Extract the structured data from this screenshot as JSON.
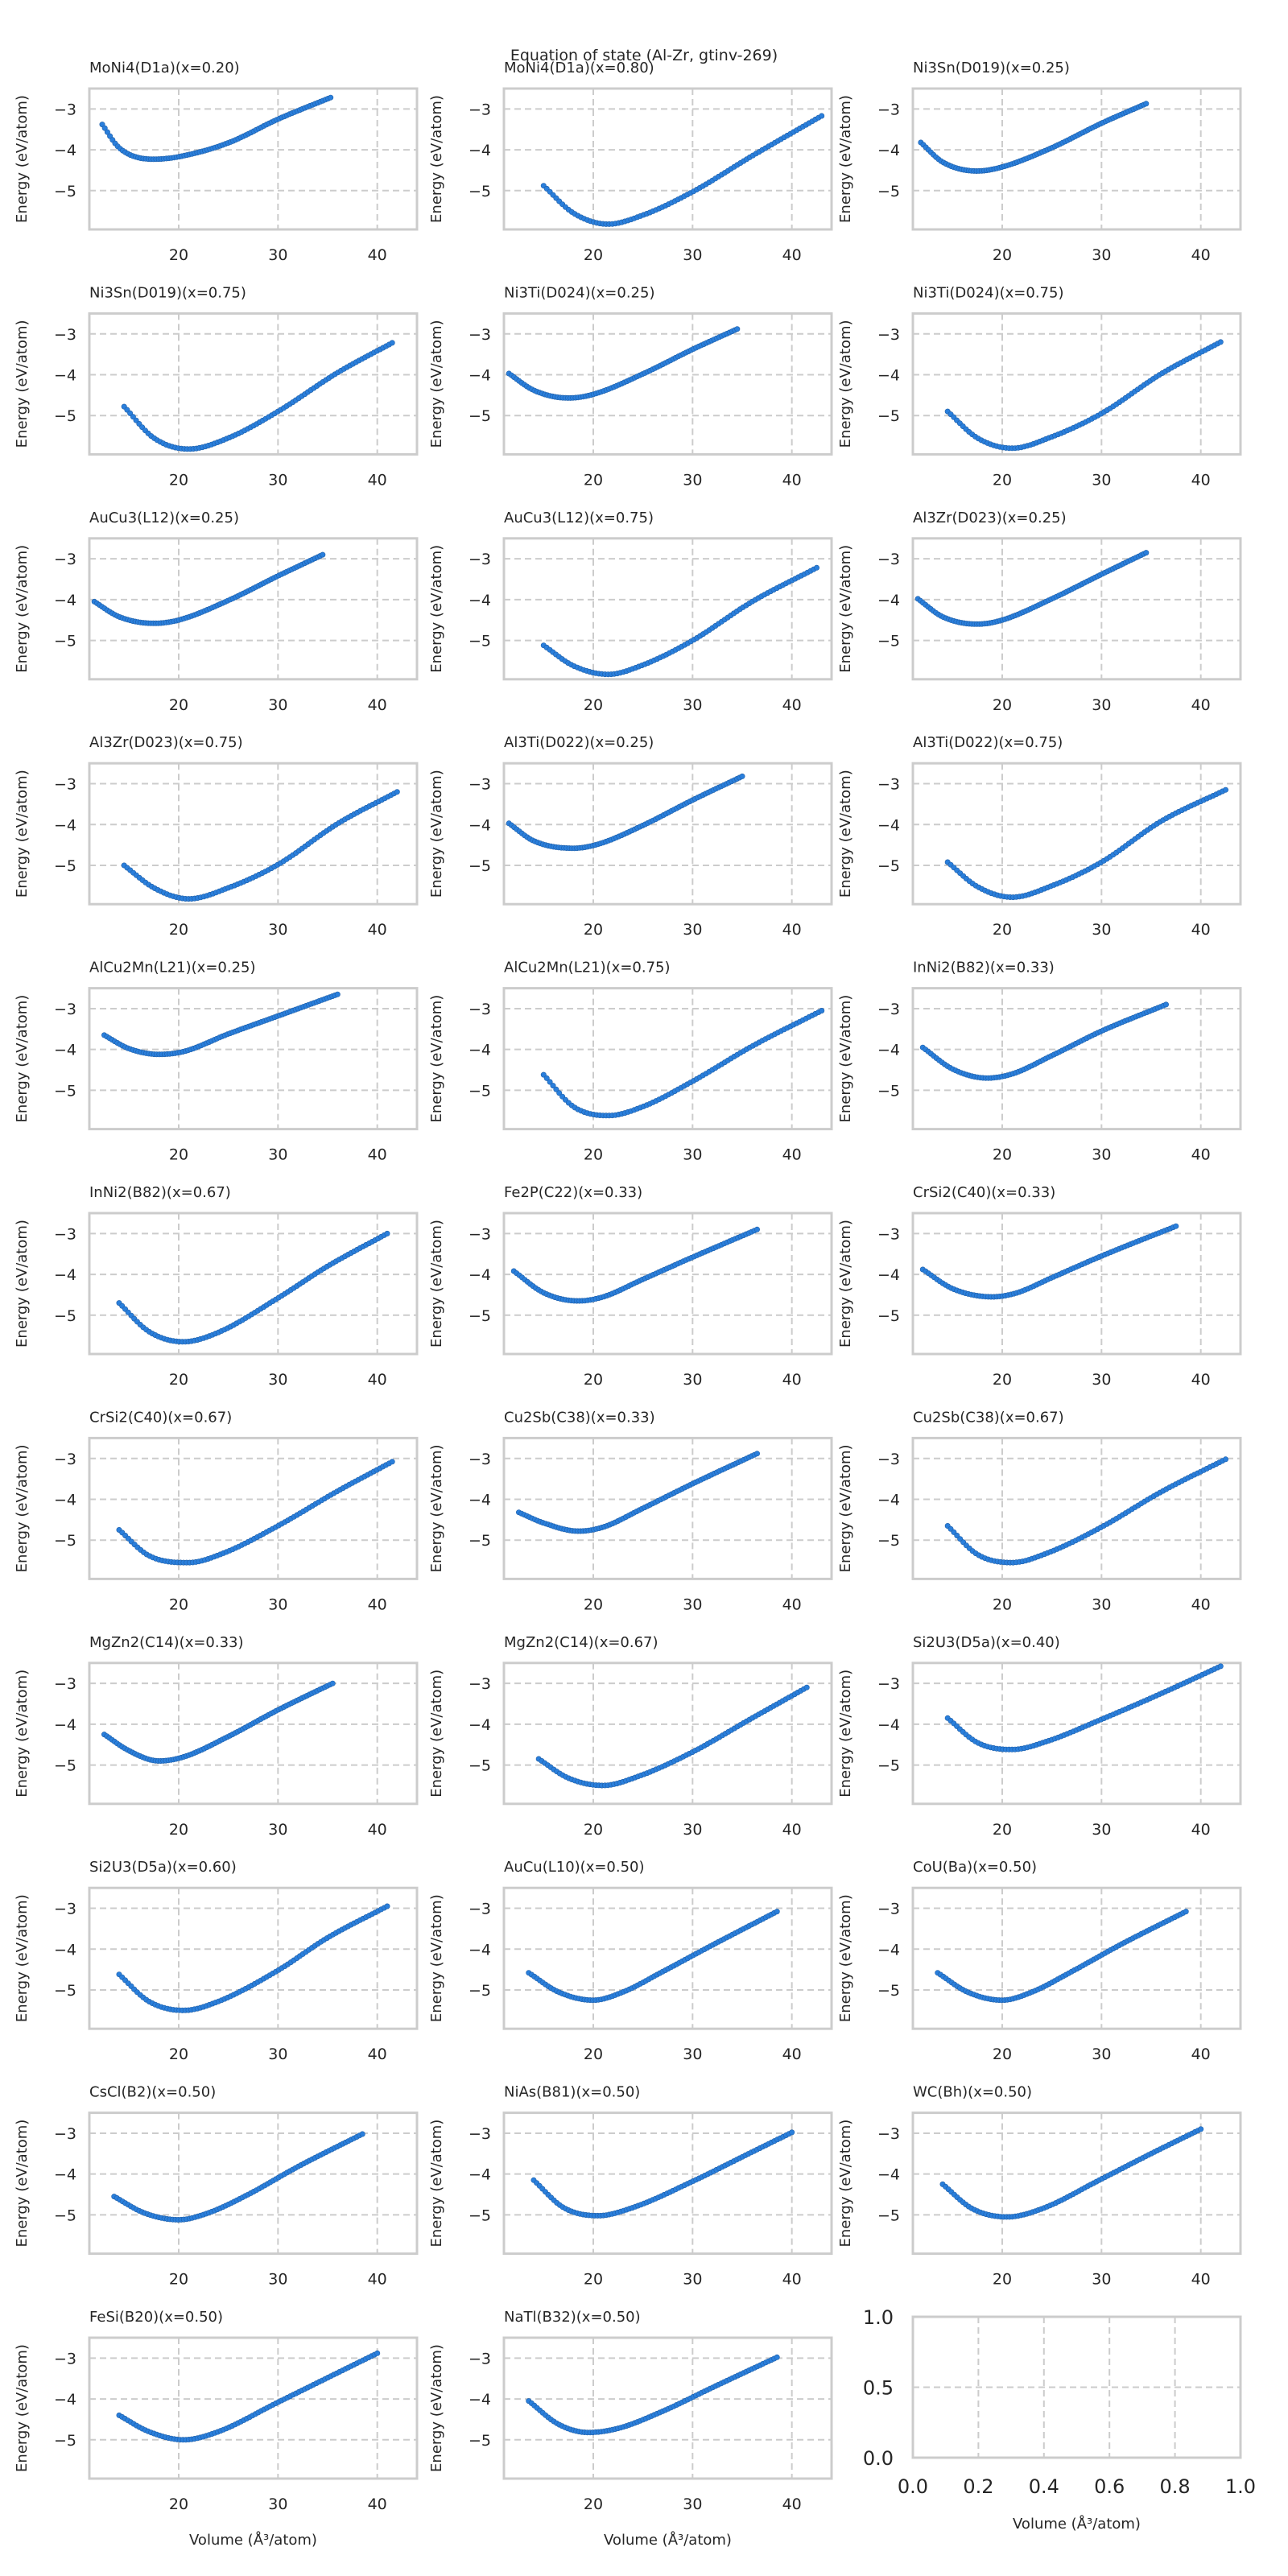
{
  "figure": {
    "suptitle": "Equation of state (Al-Zr, gtinv-269)",
    "marker_color": "#2a7fdc",
    "marker_edge_color": "#1f5fa8",
    "grid_color": "#cccccc",
    "frame_color": "#cccccc"
  },
  "chart_data": {
    "type": "scatter",
    "title": "Equation of state (Al-Zr, gtinv-269)",
    "xlabel": "Volume (Å³/atom)",
    "ylabel": "Energy (eV/atom)",
    "xlim": [
      11,
      44
    ],
    "ylim": [
      -5.95,
      -2.5
    ],
    "xticks": [
      20,
      30,
      40
    ],
    "yticks": [
      -3,
      -4,
      -5
    ],
    "xtick_labels": [
      "20",
      "30",
      "40"
    ],
    "ytick_labels": [
      "−3",
      "−4",
      "−5"
    ],
    "grid": true,
    "layout": "11 rows x 3 columns",
    "panels": [
      {
        "title": "MoNi4(D1a)(x=0.20)",
        "points": [
          [
            12.3,
            -3.38
          ],
          [
            14.0,
            -3.95
          ],
          [
            17.5,
            -4.23
          ],
          [
            20.0,
            -4.17
          ],
          [
            25.0,
            -3.83
          ],
          [
            30.0,
            -3.25
          ],
          [
            35.3,
            -2.72
          ]
        ]
      },
      {
        "title": "MoNi4(D1a)(x=0.80)",
        "points": [
          [
            15.0,
            -4.88
          ],
          [
            18.0,
            -5.55
          ],
          [
            21.5,
            -5.82
          ],
          [
            25.0,
            -5.6
          ],
          [
            30.0,
            -5.03
          ],
          [
            36.0,
            -4.15
          ],
          [
            43.0,
            -3.17
          ]
        ]
      },
      {
        "title": "Ni3Sn(D019)(x=0.25)",
        "points": [
          [
            11.8,
            -3.82
          ],
          [
            14.0,
            -4.3
          ],
          [
            17.5,
            -4.52
          ],
          [
            20.0,
            -4.42
          ],
          [
            25.0,
            -3.95
          ],
          [
            30.0,
            -3.35
          ],
          [
            34.5,
            -2.87
          ]
        ]
      },
      {
        "title": "Ni3Sn(D019)(x=0.75)",
        "points": [
          [
            14.5,
            -4.78
          ],
          [
            17.5,
            -5.55
          ],
          [
            21.0,
            -5.82
          ],
          [
            25.0,
            -5.55
          ],
          [
            30.0,
            -4.9
          ],
          [
            36.0,
            -3.95
          ],
          [
            41.5,
            -3.22
          ]
        ]
      },
      {
        "title": "Ni3Ti(D024)(x=0.25)",
        "points": [
          [
            11.5,
            -3.97
          ],
          [
            14.0,
            -4.38
          ],
          [
            17.5,
            -4.57
          ],
          [
            20.0,
            -4.48
          ],
          [
            25.0,
            -3.98
          ],
          [
            30.0,
            -3.38
          ],
          [
            34.5,
            -2.88
          ]
        ]
      },
      {
        "title": "Ni3Ti(D024)(x=0.75)",
        "points": [
          [
            14.5,
            -4.9
          ],
          [
            17.5,
            -5.55
          ],
          [
            21.0,
            -5.8
          ],
          [
            25.0,
            -5.52
          ],
          [
            30.0,
            -4.95
          ],
          [
            36.0,
            -3.98
          ],
          [
            42.0,
            -3.2
          ]
        ]
      },
      {
        "title": "AuCu3(L12)(x=0.25)",
        "points": [
          [
            11.5,
            -4.05
          ],
          [
            14.0,
            -4.42
          ],
          [
            17.5,
            -4.58
          ],
          [
            20.0,
            -4.5
          ],
          [
            25.0,
            -4.02
          ],
          [
            30.0,
            -3.42
          ],
          [
            34.5,
            -2.9
          ]
        ]
      },
      {
        "title": "AuCu3(L12)(x=0.75)",
        "points": [
          [
            15.0,
            -5.12
          ],
          [
            18.0,
            -5.62
          ],
          [
            21.5,
            -5.83
          ],
          [
            25.0,
            -5.6
          ],
          [
            30.0,
            -5.0
          ],
          [
            36.0,
            -4.05
          ],
          [
            42.5,
            -3.22
          ]
        ]
      },
      {
        "title": "Al3Zr(D023)(x=0.25)",
        "points": [
          [
            11.5,
            -3.98
          ],
          [
            14.0,
            -4.42
          ],
          [
            17.5,
            -4.6
          ],
          [
            20.0,
            -4.5
          ],
          [
            25.0,
            -3.98
          ],
          [
            30.0,
            -3.38
          ],
          [
            34.5,
            -2.85
          ]
        ]
      },
      {
        "title": "Al3Zr(D023)(x=0.75)",
        "points": [
          [
            14.5,
            -5.0
          ],
          [
            17.5,
            -5.55
          ],
          [
            21.0,
            -5.82
          ],
          [
            25.0,
            -5.55
          ],
          [
            30.0,
            -4.98
          ],
          [
            36.0,
            -3.98
          ],
          [
            42.0,
            -3.2
          ]
        ]
      },
      {
        "title": "Al3Ti(D022)(x=0.25)",
        "points": [
          [
            11.5,
            -3.97
          ],
          [
            14.0,
            -4.4
          ],
          [
            18.0,
            -4.58
          ],
          [
            20.5,
            -4.48
          ],
          [
            25.0,
            -4.02
          ],
          [
            30.0,
            -3.4
          ],
          [
            35.0,
            -2.82
          ]
        ]
      },
      {
        "title": "Al3Ti(D022)(x=0.75)",
        "points": [
          [
            14.5,
            -4.92
          ],
          [
            17.5,
            -5.52
          ],
          [
            21.0,
            -5.78
          ],
          [
            25.0,
            -5.5
          ],
          [
            30.0,
            -4.92
          ],
          [
            36.0,
            -3.92
          ],
          [
            42.5,
            -3.15
          ]
        ]
      },
      {
        "title": "AlCu2Mn(L21)(x=0.25)",
        "points": [
          [
            12.5,
            -3.65
          ],
          [
            15.0,
            -3.98
          ],
          [
            18.0,
            -4.12
          ],
          [
            20.5,
            -4.05
          ],
          [
            25.0,
            -3.62
          ],
          [
            30.0,
            -3.18
          ],
          [
            36.0,
            -2.65
          ]
        ]
      },
      {
        "title": "AlCu2Mn(L21)(x=0.75)",
        "points": [
          [
            15.0,
            -4.62
          ],
          [
            18.0,
            -5.4
          ],
          [
            21.5,
            -5.62
          ],
          [
            25.0,
            -5.4
          ],
          [
            30.0,
            -4.78
          ],
          [
            36.0,
            -3.92
          ],
          [
            43.0,
            -3.05
          ]
        ]
      },
      {
        "title": "InNi2(B82)(x=0.33)",
        "points": [
          [
            12.0,
            -3.95
          ],
          [
            15.0,
            -4.48
          ],
          [
            18.5,
            -4.7
          ],
          [
            21.0,
            -4.6
          ],
          [
            25.0,
            -4.15
          ],
          [
            30.0,
            -3.55
          ],
          [
            36.5,
            -2.9
          ]
        ]
      },
      {
        "title": "InNi2(B82)(x=0.67)",
        "points": [
          [
            14.0,
            -4.7
          ],
          [
            17.0,
            -5.4
          ],
          [
            20.5,
            -5.65
          ],
          [
            24.0,
            -5.42
          ],
          [
            30.0,
            -4.58
          ],
          [
            35.0,
            -3.8
          ],
          [
            41.0,
            -3.0
          ]
        ]
      },
      {
        "title": "Fe2P(C22)(x=0.33)",
        "points": [
          [
            12.0,
            -3.92
          ],
          [
            15.0,
            -4.45
          ],
          [
            18.5,
            -4.65
          ],
          [
            21.0,
            -4.55
          ],
          [
            25.0,
            -4.12
          ],
          [
            30.0,
            -3.58
          ],
          [
            36.5,
            -2.9
          ]
        ]
      },
      {
        "title": "CrSi2(C40)(x=0.33)",
        "points": [
          [
            12.0,
            -3.88
          ],
          [
            15.0,
            -4.35
          ],
          [
            19.0,
            -4.55
          ],
          [
            21.5,
            -4.45
          ],
          [
            25.0,
            -4.08
          ],
          [
            30.0,
            -3.55
          ],
          [
            37.5,
            -2.82
          ]
        ]
      },
      {
        "title": "CrSi2(C40)(x=0.67)",
        "points": [
          [
            14.0,
            -4.75
          ],
          [
            17.0,
            -5.38
          ],
          [
            21.0,
            -5.55
          ],
          [
            24.5,
            -5.32
          ],
          [
            30.0,
            -4.65
          ],
          [
            36.0,
            -3.8
          ],
          [
            41.5,
            -3.08
          ]
        ]
      },
      {
        "title": "Cu2Sb(C38)(x=0.33)",
        "points": [
          [
            12.5,
            -4.32
          ],
          [
            15.0,
            -4.58
          ],
          [
            18.5,
            -4.78
          ],
          [
            21.0,
            -4.68
          ],
          [
            25.0,
            -4.22
          ],
          [
            30.0,
            -3.62
          ],
          [
            36.5,
            -2.88
          ]
        ]
      },
      {
        "title": "Cu2Sb(C38)(x=0.67)",
        "points": [
          [
            14.5,
            -4.65
          ],
          [
            17.5,
            -5.35
          ],
          [
            21.0,
            -5.55
          ],
          [
            24.5,
            -5.32
          ],
          [
            30.0,
            -4.68
          ],
          [
            36.0,
            -3.82
          ],
          [
            42.5,
            -3.02
          ]
        ]
      },
      {
        "title": "MgZn2(C14)(x=0.33)",
        "points": [
          [
            12.5,
            -4.25
          ],
          [
            15.0,
            -4.65
          ],
          [
            18.0,
            -4.9
          ],
          [
            20.5,
            -4.8
          ],
          [
            25.0,
            -4.3
          ],
          [
            30.0,
            -3.65
          ],
          [
            35.5,
            -3.0
          ]
        ]
      },
      {
        "title": "MgZn2(C14)(x=0.67)",
        "points": [
          [
            14.5,
            -4.85
          ],
          [
            17.5,
            -5.32
          ],
          [
            21.0,
            -5.5
          ],
          [
            24.5,
            -5.28
          ],
          [
            30.0,
            -4.68
          ],
          [
            36.0,
            -3.85
          ],
          [
            41.5,
            -3.1
          ]
        ]
      },
      {
        "title": "Si2U3(D5a)(x=0.40)",
        "points": [
          [
            14.5,
            -3.85
          ],
          [
            17.5,
            -4.45
          ],
          [
            21.0,
            -4.62
          ],
          [
            24.5,
            -4.42
          ],
          [
            30.0,
            -3.88
          ],
          [
            36.0,
            -3.25
          ],
          [
            42.0,
            -2.58
          ]
        ]
      },
      {
        "title": "Si2U3(D5a)(x=0.60)",
        "points": [
          [
            14.0,
            -4.62
          ],
          [
            17.0,
            -5.28
          ],
          [
            20.5,
            -5.5
          ],
          [
            24.0,
            -5.28
          ],
          [
            30.0,
            -4.52
          ],
          [
            35.0,
            -3.72
          ],
          [
            41.0,
            -2.95
          ]
        ]
      },
      {
        "title": "AuCu(L10)(x=0.50)",
        "points": [
          [
            13.5,
            -4.58
          ],
          [
            16.5,
            -5.05
          ],
          [
            20.0,
            -5.25
          ],
          [
            23.0,
            -5.05
          ],
          [
            27.0,
            -4.55
          ],
          [
            32.0,
            -3.9
          ],
          [
            38.5,
            -3.08
          ]
        ]
      },
      {
        "title": "CoU(Ba)(x=0.50)",
        "points": [
          [
            13.5,
            -4.58
          ],
          [
            16.5,
            -5.05
          ],
          [
            20.0,
            -5.25
          ],
          [
            23.0,
            -5.05
          ],
          [
            27.0,
            -4.55
          ],
          [
            32.0,
            -3.88
          ],
          [
            38.5,
            -3.08
          ]
        ]
      },
      {
        "title": "CsCl(B2)(x=0.50)",
        "points": [
          [
            13.5,
            -4.55
          ],
          [
            16.5,
            -4.95
          ],
          [
            20.0,
            -5.12
          ],
          [
            23.0,
            -4.95
          ],
          [
            27.0,
            -4.5
          ],
          [
            32.0,
            -3.82
          ],
          [
            38.5,
            -3.02
          ]
        ]
      },
      {
        "title": "NiAs(B81)(x=0.50)",
        "points": [
          [
            14.0,
            -4.15
          ],
          [
            17.0,
            -4.82
          ],
          [
            20.5,
            -5.02
          ],
          [
            24.0,
            -4.82
          ],
          [
            30.0,
            -4.18
          ],
          [
            35.0,
            -3.58
          ],
          [
            40.0,
            -2.98
          ]
        ]
      },
      {
        "title": "WC(Bh)(x=0.50)",
        "points": [
          [
            14.0,
            -4.25
          ],
          [
            17.0,
            -4.85
          ],
          [
            20.5,
            -5.05
          ],
          [
            24.0,
            -4.85
          ],
          [
            30.0,
            -4.12
          ],
          [
            35.0,
            -3.5
          ],
          [
            40.0,
            -2.9
          ]
        ]
      },
      {
        "title": "FeSi(B20)(x=0.50)",
        "points": [
          [
            14.0,
            -4.4
          ],
          [
            17.0,
            -4.8
          ],
          [
            20.5,
            -5.0
          ],
          [
            24.0,
            -4.8
          ],
          [
            30.0,
            -4.08
          ],
          [
            35.0,
            -3.48
          ],
          [
            40.0,
            -2.88
          ]
        ]
      },
      {
        "title": "NaTl(B32)(x=0.50)",
        "points": [
          [
            13.5,
            -4.05
          ],
          [
            16.5,
            -4.62
          ],
          [
            19.5,
            -4.82
          ],
          [
            22.5,
            -4.72
          ],
          [
            27.0,
            -4.3
          ],
          [
            32.0,
            -3.72
          ],
          [
            38.5,
            -2.98
          ]
        ]
      }
    ],
    "empty_panel": {
      "xlim": [
        0,
        1
      ],
      "ylim": [
        0,
        1
      ],
      "xtick_labels": [
        "0.0",
        "0.2",
        "0.4",
        "0.6",
        "0.8",
        "1.0"
      ],
      "ytick_labels": [
        "0.0",
        "0.5",
        "1.0"
      ]
    }
  }
}
